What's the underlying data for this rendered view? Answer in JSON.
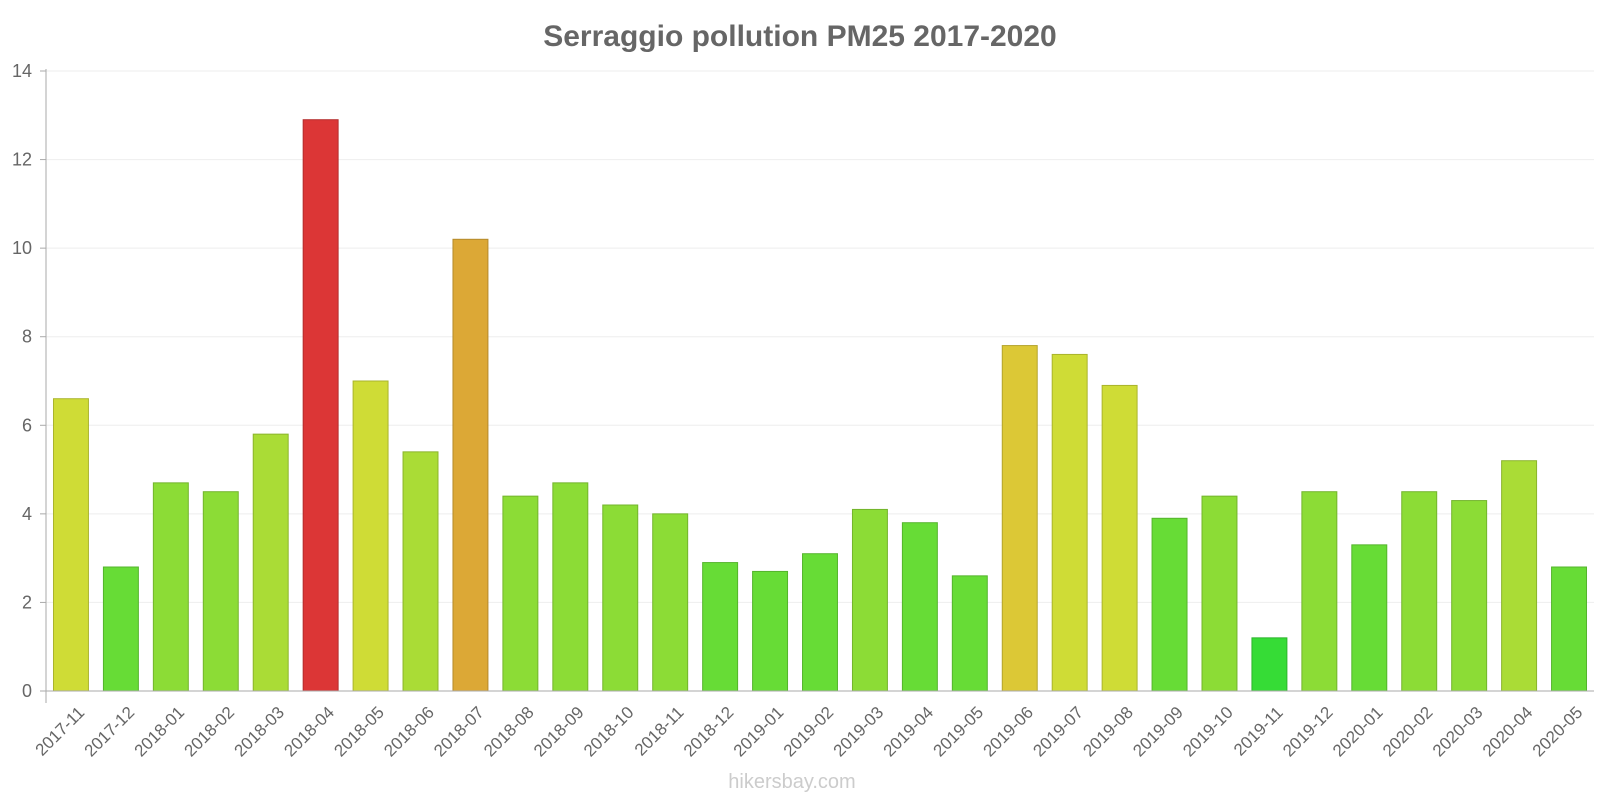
{
  "chart_data": {
    "type": "bar",
    "title": "Serraggio pollution PM25 2017-2020",
    "xlabel": "",
    "ylabel": "",
    "ylim": [
      0,
      14
    ],
    "yticks": [
      0,
      2,
      4,
      6,
      8,
      10,
      12,
      14
    ],
    "grid": true,
    "legend": "none",
    "categories": [
      "2017-11",
      "2017-12",
      "2018-01",
      "2018-02",
      "2018-03",
      "2018-04",
      "2018-05",
      "2018-06",
      "2018-07",
      "2018-08",
      "2018-09",
      "2018-10",
      "2018-11",
      "2018-12",
      "2019-01",
      "2019-02",
      "2019-03",
      "2019-04",
      "2019-05",
      "2019-06",
      "2019-07",
      "2019-08",
      "2019-09",
      "2019-10",
      "2019-11",
      "2019-12",
      "2020-01",
      "2020-02",
      "2020-03",
      "2020-04",
      "2020-05"
    ],
    "values": [
      6.6,
      2.8,
      4.7,
      4.5,
      5.8,
      12.9,
      7.0,
      5.4,
      10.2,
      4.4,
      4.7,
      4.2,
      4.0,
      2.9,
      2.7,
      3.1,
      4.1,
      3.8,
      2.6,
      7.8,
      7.6,
      6.9,
      3.9,
      4.4,
      1.2,
      4.5,
      3.3,
      4.5,
      4.3,
      5.2,
      2.8
    ],
    "colors": [
      "#cfdc36",
      "#67dc36",
      "#8cdc36",
      "#8cdc36",
      "#aadc36",
      "#dc3636",
      "#cfdc36",
      "#aadc36",
      "#dca836",
      "#8cdc36",
      "#8cdc36",
      "#8cdc36",
      "#8cdc36",
      "#67dc36",
      "#67dc36",
      "#67dc36",
      "#8cdc36",
      "#67dc36",
      "#67dc36",
      "#dcc836",
      "#cfdc36",
      "#cfdc36",
      "#67dc36",
      "#8cdc36",
      "#36dc36",
      "#8cdc36",
      "#67dc36",
      "#8cdc36",
      "#8cdc36",
      "#aadc36",
      "#67dc36"
    ]
  },
  "credit": "hikersbay.com"
}
